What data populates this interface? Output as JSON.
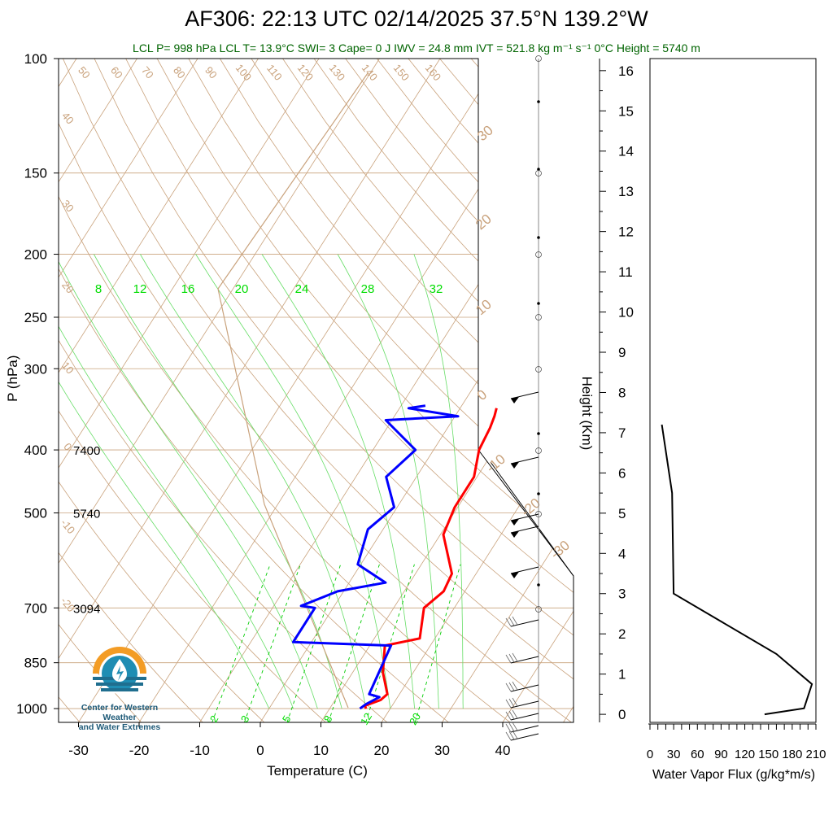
{
  "title": "AF306: 22:13 UTC 02/14/2025  37.5°N 139.2°W",
  "subtitle": "LCL P= 998 hPa  LCL T= 13.9°C  SWI= 3  Cape= 0 J  IWV = 24.8 mm  IVT = 521.8 kg m⁻¹ s⁻¹  0°C Height = 5740 m",
  "logo_text": [
    "Center for Western Weather",
    "and Water Extremes"
  ],
  "colors": {
    "temperature": "#ff0000",
    "dewpoint": "#0000ff",
    "mixing_ratio": "#00cc00",
    "adiabats": "#c9a27c",
    "title_green": "#006400"
  },
  "chart_data": [
    {
      "type": "line",
      "name": "skew-t",
      "xlabel": "Temperature (C)",
      "ylabel": "P (hPa)",
      "xlim": [
        -34,
        51
      ],
      "ylim": [
        1050,
        100
      ],
      "y_scale": "log",
      "x_ticks": [
        -30,
        -20,
        -10,
        0,
        10,
        20,
        30,
        40
      ],
      "y_ticks": [
        100,
        150,
        200,
        250,
        300,
        400,
        500,
        700,
        850,
        1000
      ],
      "height_marks": [
        {
          "label": "7400",
          "p": 400
        },
        {
          "label": "5740",
          "p": 500
        },
        {
          "label": "3094",
          "p": 700
        }
      ],
      "mixing_ratio_top_labels": [
        "8",
        "12",
        "16",
        "20",
        "24",
        "28",
        "32"
      ],
      "mixing_ratio_bottom_labels": [
        "2",
        "3",
        "5",
        "8",
        "12",
        "20"
      ],
      "theta_labels": [
        "50",
        "60",
        "70",
        "80",
        "90",
        "100",
        "110",
        "120",
        "130",
        "140",
        "150",
        "160"
      ],
      "theta_left_labels": [
        "40",
        "30",
        "20",
        "10",
        "0",
        "-10",
        "-20"
      ],
      "isotherm_right_labels": [
        "30",
        "20",
        "10",
        "0",
        "-10",
        "-20",
        "-30"
      ],
      "temperature": [
        {
          "p": 1000,
          "t": 16.0
        },
        {
          "p": 990,
          "t": 15.5
        },
        {
          "p": 970,
          "t": 17.5
        },
        {
          "p": 950,
          "t": 18.0
        },
        {
          "p": 880,
          "t": 15.0
        },
        {
          "p": 800,
          "t": 12.5
        },
        {
          "p": 780,
          "t": 17.5
        },
        {
          "p": 700,
          "t": 15.0
        },
        {
          "p": 660,
          "t": 16.5
        },
        {
          "p": 620,
          "t": 16.0
        },
        {
          "p": 540,
          "t": 10.5
        },
        {
          "p": 490,
          "t": 9.5
        },
        {
          "p": 440,
          "t": 9.5
        },
        {
          "p": 400,
          "t": 7.5
        },
        {
          "p": 370,
          "t": 7.0
        },
        {
          "p": 355,
          "t": 6.5
        },
        {
          "p": 345,
          "t": 6.0
        }
      ],
      "dewpoint": [
        {
          "p": 1000,
          "t": 15.0
        },
        {
          "p": 985,
          "t": 15.5
        },
        {
          "p": 960,
          "t": 17.0
        },
        {
          "p": 950,
          "t": 15.0
        },
        {
          "p": 800,
          "t": 13.5
        },
        {
          "p": 790,
          "t": -3.0
        },
        {
          "p": 700,
          "t": -3.0
        },
        {
          "p": 695,
          "t": -5.5
        },
        {
          "p": 660,
          "t": -1.0
        },
        {
          "p": 640,
          "t": 6.0
        },
        {
          "p": 600,
          "t": -0.5
        },
        {
          "p": 530,
          "t": -2.5
        },
        {
          "p": 490,
          "t": -0.5
        },
        {
          "p": 440,
          "t": -5.0
        },
        {
          "p": 400,
          "t": -3.0
        },
        {
          "p": 360,
          "t": -11.0
        },
        {
          "p": 355,
          "t": 0.5
        },
        {
          "p": 345,
          "t": -8.5
        },
        {
          "p": 342,
          "t": -6.0
        }
      ]
    },
    {
      "type": "line",
      "name": "water-vapor-flux",
      "xlabel": "Water Vapor Flux (g/kg*m/s)",
      "ylabel": "Height (Km)",
      "xlim": [
        0,
        210
      ],
      "ylim": [
        -0.2,
        16.3
      ],
      "x_ticks": [
        0,
        30,
        60,
        90,
        120,
        150,
        180,
        210
      ],
      "y_ticks": [
        0,
        1,
        2,
        3,
        4,
        5,
        6,
        7,
        8,
        9,
        10,
        11,
        12,
        13,
        14,
        15,
        16
      ],
      "points": [
        {
          "x": 145,
          "h": 0.0
        },
        {
          "x": 195,
          "h": 0.15
        },
        {
          "x": 205,
          "h": 0.75
        },
        {
          "x": 160,
          "h": 1.5
        },
        {
          "x": 30,
          "h": 3.0
        },
        {
          "x": 28,
          "h": 5.5
        },
        {
          "x": 15,
          "h": 7.2
        }
      ]
    }
  ]
}
